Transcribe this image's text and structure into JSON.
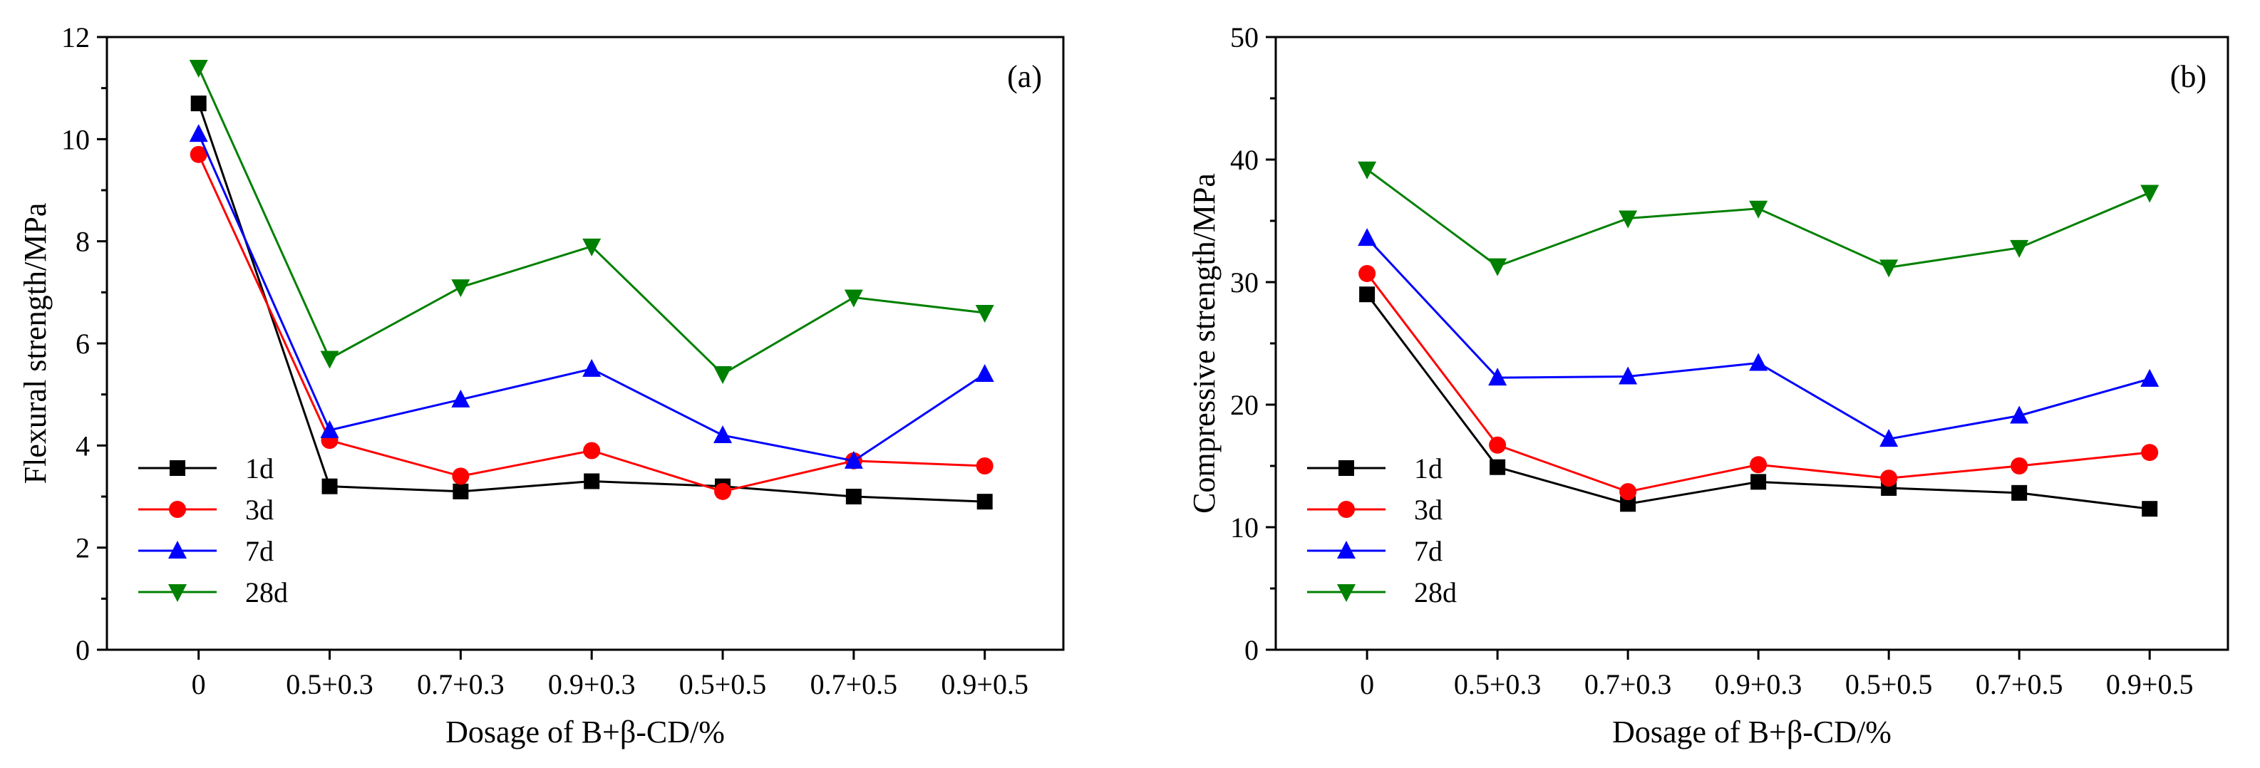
{
  "chart_data": [
    {
      "type": "line",
      "panel_label": "(a)",
      "xlabel": "Dosage of B+β-CD/%",
      "ylabel": "Flexural strength/MPa",
      "categories": [
        "0",
        "0.5+0.3",
        "0.7+0.3",
        "0.9+0.3",
        "0.5+0.5",
        "0.7+0.5",
        "0.9+0.5"
      ],
      "ylim": [
        0,
        12
      ],
      "yticks": [
        0,
        2,
        4,
        6,
        8,
        10,
        12
      ],
      "legend_position": "bottom-left",
      "series": [
        {
          "name": "1d",
          "color": "#000000",
          "marker": "square",
          "values": [
            10.7,
            3.2,
            3.1,
            3.3,
            3.2,
            3.0,
            2.9
          ]
        },
        {
          "name": "3d",
          "color": "#ff0000",
          "marker": "circle",
          "values": [
            9.7,
            4.1,
            3.4,
            3.9,
            3.1,
            3.7,
            3.6
          ]
        },
        {
          "name": "7d",
          "color": "#0000ff",
          "marker": "triangle-up",
          "values": [
            10.1,
            4.3,
            4.9,
            5.5,
            4.2,
            3.7,
            5.4
          ]
        },
        {
          "name": "28d",
          "color": "#008000",
          "marker": "triangle-down",
          "values": [
            11.4,
            5.7,
            7.1,
            7.9,
            5.4,
            6.9,
            6.6
          ]
        }
      ]
    },
    {
      "type": "line",
      "panel_label": "(b)",
      "xlabel": "Dosage of B+β-CD/%",
      "ylabel": "Compressive strength/MPa",
      "categories": [
        "0",
        "0.5+0.3",
        "0.7+0.3",
        "0.9+0.3",
        "0.5+0.5",
        "0.7+0.5",
        "0.9+0.5"
      ],
      "ylim": [
        0,
        50
      ],
      "yticks": [
        0,
        10,
        20,
        30,
        40,
        50
      ],
      "legend_position": "bottom-left",
      "series": [
        {
          "name": "1d",
          "color": "#000000",
          "marker": "square",
          "values": [
            29.0,
            14.9,
            11.9,
            13.7,
            13.2,
            12.8,
            11.5
          ]
        },
        {
          "name": "3d",
          "color": "#ff0000",
          "marker": "circle",
          "values": [
            30.7,
            16.7,
            12.9,
            15.1,
            14.0,
            15.0,
            16.1
          ]
        },
        {
          "name": "7d",
          "color": "#0000ff",
          "marker": "triangle-up",
          "values": [
            33.6,
            22.2,
            22.3,
            23.4,
            17.2,
            19.1,
            22.1
          ]
        },
        {
          "name": "28d",
          "color": "#008000",
          "marker": "triangle-down",
          "values": [
            39.2,
            31.3,
            35.2,
            36.0,
            31.2,
            32.8,
            37.3
          ]
        }
      ]
    }
  ]
}
